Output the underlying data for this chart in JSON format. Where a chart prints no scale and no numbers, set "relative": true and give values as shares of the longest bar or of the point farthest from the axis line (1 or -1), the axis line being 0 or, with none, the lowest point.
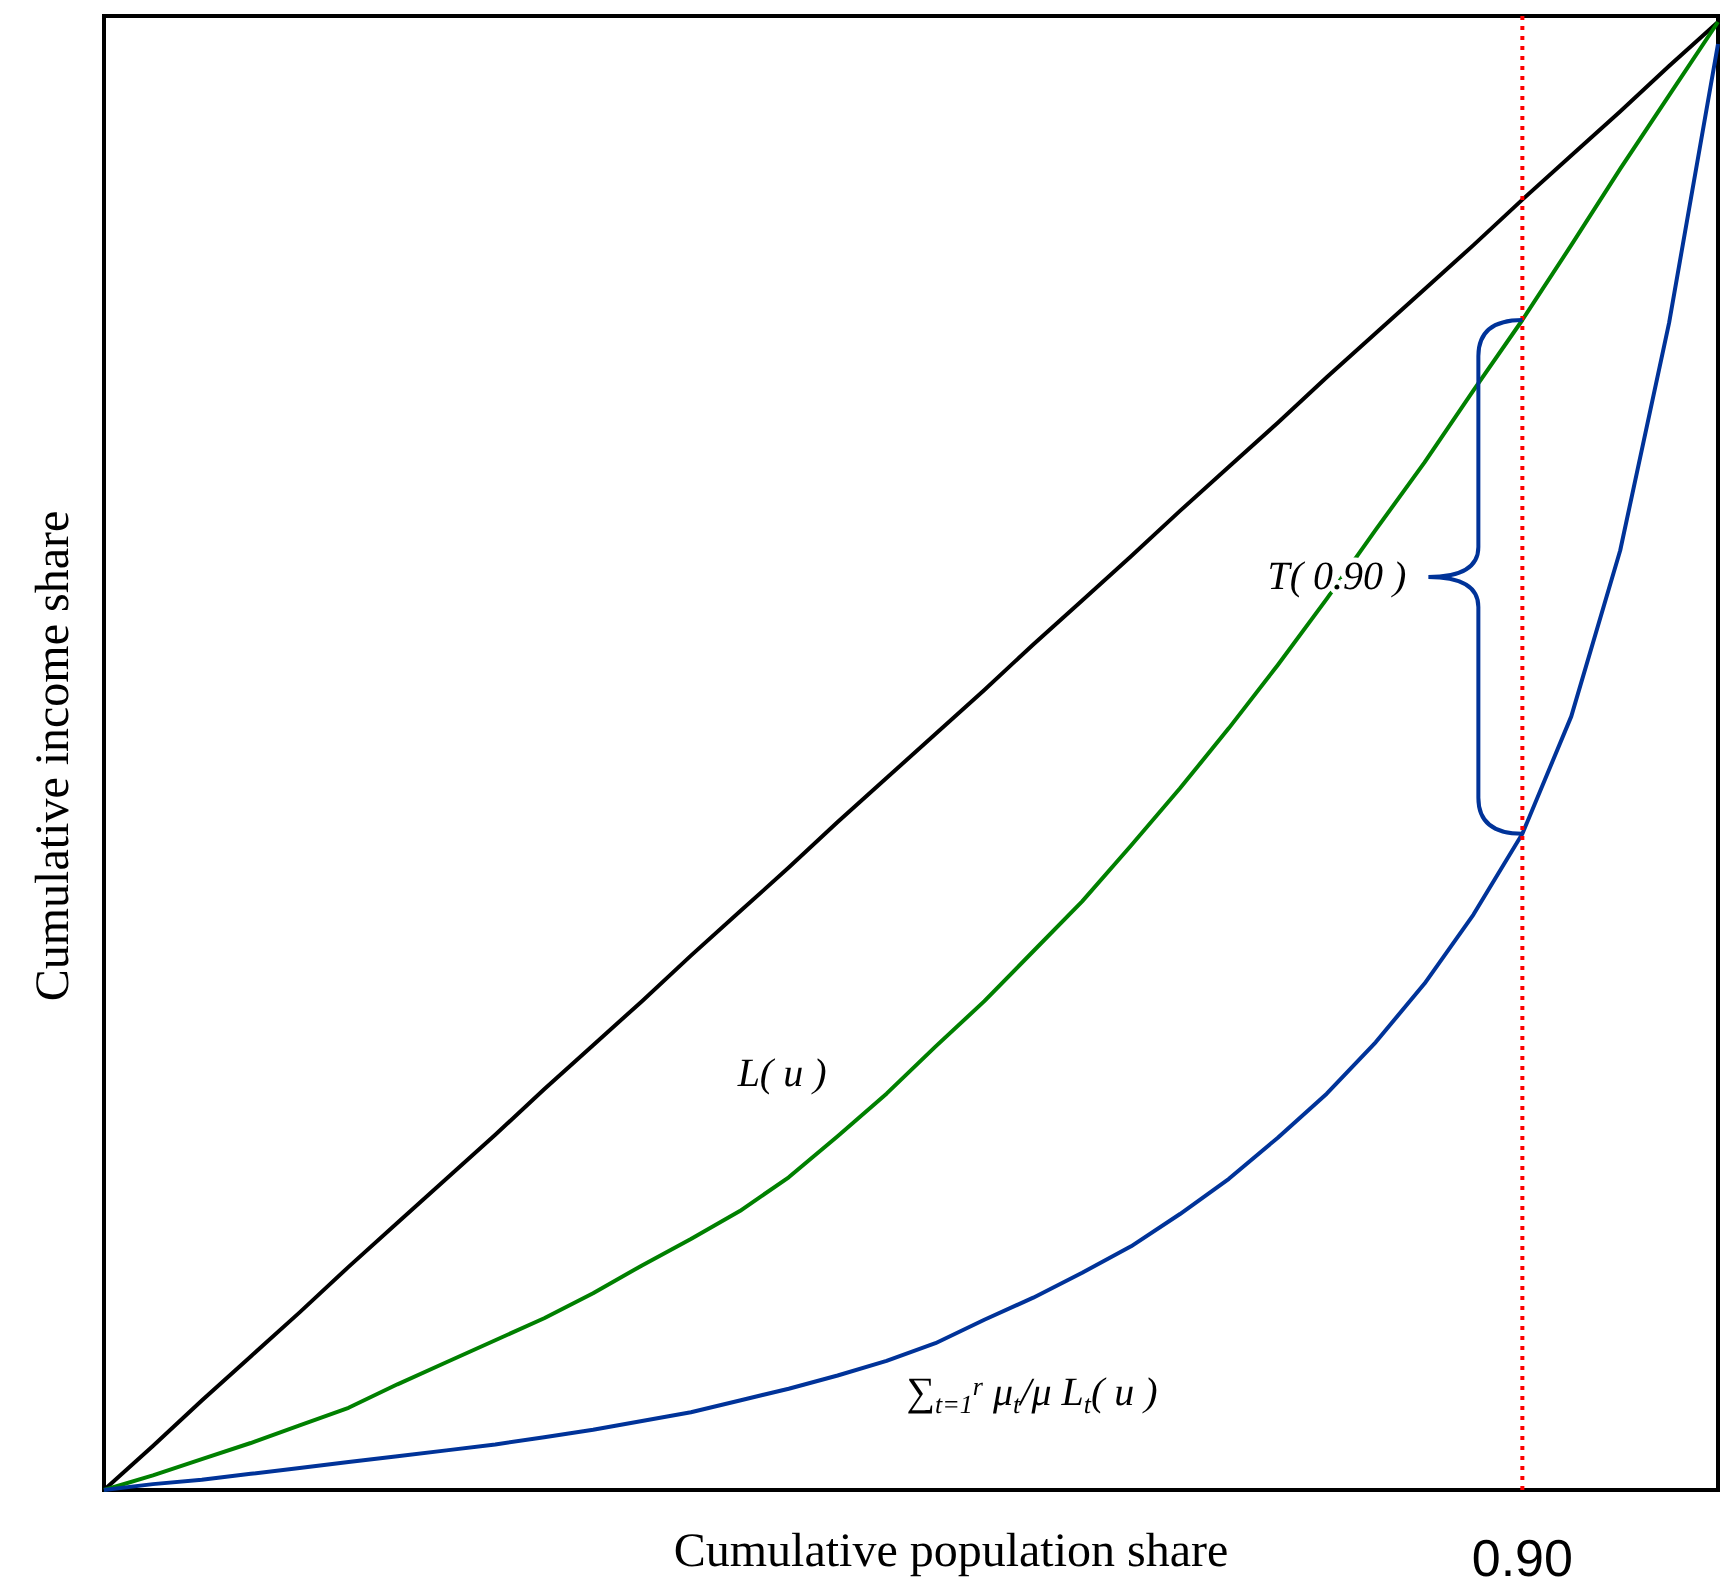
{
  "chart_data": {
    "type": "line",
    "relative": true,
    "xlabel": "Cumulative population share",
    "ylabel": "Cumulative income share",
    "legend": false,
    "marker": "none",
    "categories": [
      null,
      null,
      null,
      null,
      null,
      null,
      null,
      null,
      null,
      null,
      null,
      null,
      null,
      null,
      null,
      null,
      null,
      null,
      null,
      null,
      null,
      null,
      null,
      null,
      null,
      null,
      null,
      null,
      null,
      null,
      null,
      null,
      null,
      null
    ],
    "series": [
      {
        "color": "#000000",
        "values": [
          0,
          0.03,
          0.061,
          0.091,
          0.121,
          0.152,
          0.182,
          0.212,
          0.242,
          0.273,
          0.303,
          0.333,
          0.364,
          0.394,
          0.424,
          0.455,
          0.485,
          0.515,
          0.545,
          0.576,
          0.606,
          0.636,
          0.667,
          0.697,
          0.727,
          0.758,
          0.788,
          0.818,
          0.848,
          0.879,
          0.909,
          0.939,
          0.97,
          1
        ]
      },
      {
        "name": "L( u )",
        "color": "#008000",
        "values": [
          0,
          0.01,
          0.021,
          0.032,
          0.044,
          0.056,
          0.072,
          0.087,
          0.102,
          0.117,
          0.134,
          0.153,
          0.171,
          0.19,
          0.213,
          0.241,
          0.27,
          0.302,
          0.333,
          0.367,
          0.401,
          0.439,
          0.478,
          0.519,
          0.562,
          0.607,
          0.654,
          0.7,
          0.749,
          0.797,
          0.848,
          0.9,
          0.95,
          1
        ]
      },
      {
        "name": "∑$_{t=1}$$^{r}$ μ$_{t}$/μ L$_{t}$( u )",
        "color": "#003399",
        "values": [
          0,
          0.004,
          0.007,
          0.011,
          0.015,
          0.019,
          0.023,
          0.027,
          0.031,
          0.036,
          0.041,
          0.047,
          0.053,
          0.061,
          0.069,
          0.078,
          0.088,
          0.1,
          0.116,
          0.131,
          0.148,
          0.166,
          0.188,
          0.212,
          0.24,
          0.27,
          0.305,
          0.345,
          0.392,
          0.447,
          0.527,
          0.64,
          0.795,
          0.985
        ]
      }
    ],
    "annotations": [
      "T( 0.90 )",
      "0.90"
    ]
  }
}
